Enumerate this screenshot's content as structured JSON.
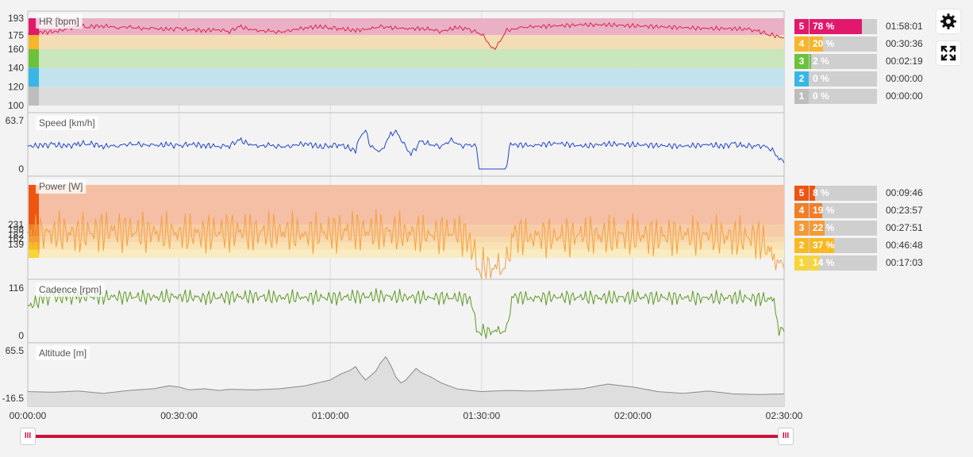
{
  "chart_data": [
    {
      "type": "line",
      "ylabel": "HR [bpm]",
      "yticks": [
        193,
        175,
        160,
        140,
        120,
        100
      ],
      "ylim": [
        100,
        193
      ],
      "zones": [
        {
          "zone": "5",
          "from": 175,
          "to": 193,
          "color": "#e2186c",
          "band": "#eab0c6",
          "pct": "78 %",
          "time": "01:58:01",
          "fraction": 0.78
        },
        {
          "zone": "4",
          "from": 160,
          "to": 175,
          "color": "#f7b52c",
          "band": "#f3ddb4",
          "pct": "20 %",
          "time": "00:30:36",
          "fraction": 0.2
        },
        {
          "zone": "3",
          "from": 140,
          "to": 160,
          "color": "#6cc23a",
          "band": "#c9e6bc",
          "pct": "2 %",
          "time": "00:02:19",
          "fraction": 0.02
        },
        {
          "zone": "2",
          "from": 120,
          "to": 140,
          "color": "#39b6e6",
          "band": "#c2e2ee",
          "pct": "0 %",
          "time": "00:00:00",
          "fraction": 0.0
        },
        {
          "zone": "1",
          "from": 100,
          "to": 120,
          "color": "#bdbdbd",
          "band": "#dcdcdc",
          "pct": "0 %",
          "time": "00:00:00",
          "fraction": 0.0
        }
      ],
      "series": [
        {
          "color": "#d6274d",
          "x": [
            0,
            3,
            6,
            8,
            10,
            12,
            15,
            18,
            20,
            22,
            25,
            28,
            30,
            32,
            35,
            38,
            40,
            42,
            45,
            48,
            50,
            52,
            55,
            58,
            60,
            62,
            65,
            68,
            70,
            72,
            75,
            78,
            80,
            82,
            85,
            87,
            88,
            89,
            90,
            91,
            92,
            93,
            95,
            98,
            100,
            105,
            110,
            115,
            120,
            125,
            130,
            135,
            140,
            143,
            145,
            147,
            150
          ],
          "values": [
            176,
            178,
            179,
            182,
            185,
            184,
            185,
            183,
            184,
            182,
            182,
            181,
            182,
            181,
            180,
            181,
            179,
            184,
            180,
            179,
            178,
            180,
            183,
            184,
            183,
            182,
            180,
            182,
            184,
            183,
            182,
            182,
            181,
            179,
            183,
            182,
            180,
            178,
            176,
            170,
            160,
            163,
            180,
            183,
            184,
            185,
            186,
            186,
            185,
            184,
            183,
            182,
            182,
            181,
            179,
            176,
            172
          ]
        }
      ],
      "xlim_minutes": [
        0,
        150
      ],
      "xticks": [
        "00:00:00",
        "00:30:00",
        "01:00:00",
        "01:30:00",
        "02:00:00",
        "02:30:00"
      ]
    },
    {
      "type": "line",
      "ylabel": "Speed [km/h]",
      "yticks": [
        63.7,
        0.0
      ],
      "ylim": [
        0,
        63.7
      ],
      "series": [
        {
          "color": "#1f46c7",
          "x": [
            0,
            3,
            5,
            8,
            10,
            12,
            15,
            18,
            20,
            22,
            25,
            28,
            30,
            32,
            35,
            38,
            40,
            42,
            45,
            48,
            50,
            52,
            55,
            58,
            60,
            62,
            65,
            66,
            67,
            68,
            70,
            72,
            73,
            75,
            76,
            78,
            80,
            82,
            84,
            86,
            88,
            89,
            89.5,
            90,
            93,
            95,
            95.5,
            96,
            100,
            105,
            110,
            115,
            120,
            125,
            130,
            135,
            138,
            140,
            142,
            144,
            146,
            147,
            148,
            149,
            150
          ],
          "values": [
            30,
            31,
            32,
            30,
            33,
            34,
            30,
            31,
            33,
            32,
            31,
            32,
            30,
            33,
            31,
            30,
            31,
            38,
            30,
            31,
            29,
            30,
            34,
            29,
            31,
            32,
            24,
            44,
            50,
            30,
            22,
            46,
            50,
            28,
            20,
            36,
            32,
            30,
            38,
            30,
            33,
            28,
            0,
            0,
            0,
            0,
            30,
            32,
            31,
            34,
            30,
            33,
            32,
            31,
            30,
            32,
            30,
            33,
            30,
            31,
            30,
            28,
            22,
            14,
            8
          ]
        }
      ]
    },
    {
      "type": "line",
      "ylabel": "Power [W]",
      "yticks": [
        231,
        198,
        182,
        162,
        139
      ],
      "ylim": [
        100,
        340
      ],
      "zones": [
        {
          "zone": "5",
          "color": "#ee5513",
          "band": "#f4bfa4",
          "pct": "8 %",
          "time": "00:09:46",
          "fraction": 0.08
        },
        {
          "zone": "4",
          "color": "#f07f2a",
          "band": "#f6cda7",
          "pct": "19 %",
          "time": "00:23:57",
          "fraction": 0.19
        },
        {
          "zone": "3",
          "color": "#f29a38",
          "band": "#f7d7ad",
          "pct": "22 %",
          "time": "00:27:51",
          "fraction": 0.22
        },
        {
          "zone": "2",
          "color": "#f8b925",
          "band": "#f9e2b3",
          "pct": "37 %",
          "time": "00:46:48",
          "fraction": 0.37
        },
        {
          "zone": "1",
          "color": "#f6d63a",
          "band": "#f9ecc2",
          "pct": "14 %",
          "time": "00:17:03",
          "fraction": 0.14
        }
      ],
      "series": [
        {
          "color": "#f5a13e",
          "x": [
            0,
            5,
            10,
            15,
            20,
            25,
            30,
            35,
            40,
            45,
            50,
            55,
            60,
            65,
            70,
            75,
            80,
            85,
            88,
            89,
            90,
            93,
            95,
            96,
            100,
            105,
            110,
            115,
            120,
            125,
            130,
            135,
            140,
            145,
            148,
            150
          ],
          "values": [
            200,
            210,
            205,
            215,
            212,
            208,
            210,
            205,
            215,
            209,
            212,
            206,
            210,
            214,
            212,
            208,
            205,
            210,
            190,
            110,
            110,
            110,
            110,
            205,
            200,
            198,
            202,
            200,
            203,
            199,
            201,
            200,
            198,
            195,
            140,
            110
          ]
        }
      ]
    },
    {
      "type": "line",
      "ylabel": "Cadence [rpm]",
      "yticks": [
        116,
        0
      ],
      "ylim": [
        0,
        116
      ],
      "series": [
        {
          "color": "#5e9a23",
          "x": [
            0,
            3,
            5,
            8,
            10,
            15,
            20,
            25,
            30,
            35,
            40,
            45,
            50,
            55,
            60,
            65,
            70,
            75,
            80,
            85,
            88,
            89,
            90,
            93,
            95,
            96,
            100,
            105,
            110,
            115,
            120,
            125,
            130,
            135,
            140,
            145,
            148,
            149,
            150
          ],
          "values": [
            70,
            90,
            95,
            93,
            96,
            94,
            95,
            93,
            96,
            92,
            94,
            95,
            93,
            94,
            92,
            95,
            96,
            94,
            93,
            92,
            90,
            10,
            10,
            10,
            10,
            95,
            92,
            94,
            93,
            92,
            94,
            93,
            92,
            91,
            93,
            90,
            88,
            10,
            10
          ]
        }
      ]
    },
    {
      "type": "area",
      "ylabel": "Altitude [m]",
      "yticks": [
        65.5,
        -16.5
      ],
      "ylim": [
        -16.5,
        65.5
      ],
      "series": [
        {
          "color": "#8a8a8a",
          "x": [
            0,
            5,
            10,
            15,
            20,
            25,
            28,
            30,
            32,
            35,
            38,
            40,
            45,
            50,
            55,
            60,
            62,
            64,
            65,
            66,
            67,
            69,
            70,
            71,
            72,
            73,
            74,
            75,
            76,
            77,
            78,
            80,
            82,
            85,
            90,
            95,
            100,
            105,
            110,
            115,
            120,
            125,
            130,
            135,
            140,
            145,
            150
          ],
          "values": [
            -5,
            -6,
            -4,
            -8,
            -3,
            0,
            5,
            3,
            -2,
            0,
            -3,
            -1,
            -2,
            0,
            5,
            15,
            25,
            32,
            38,
            25,
            15,
            30,
            45,
            55,
            40,
            20,
            10,
            15,
            25,
            35,
            28,
            20,
            10,
            0,
            -5,
            -3,
            -4,
            -2,
            0,
            8,
            3,
            -5,
            -8,
            -4,
            -9,
            -10,
            -9
          ]
        }
      ]
    }
  ],
  "zone_panel": {
    "hr": [
      {
        "num": "5",
        "pct": "78 %",
        "time": "01:58:01"
      },
      {
        "num": "4",
        "pct": "20 %",
        "time": "00:30:36"
      },
      {
        "num": "3",
        "pct": "2 %",
        "time": "00:02:19"
      },
      {
        "num": "2",
        "pct": "0 %",
        "time": "00:00:00"
      },
      {
        "num": "1",
        "pct": "0 %",
        "time": "00:00:00"
      }
    ],
    "power": [
      {
        "num": "5",
        "pct": "8 %",
        "time": "00:09:46"
      },
      {
        "num": "4",
        "pct": "19 %",
        "time": "00:23:57"
      },
      {
        "num": "3",
        "pct": "22 %",
        "time": "00:27:51"
      },
      {
        "num": "2",
        "pct": "37 %",
        "time": "00:46:48"
      },
      {
        "num": "1",
        "pct": "14 %",
        "time": "00:17:03"
      }
    ]
  },
  "toolbar": {
    "settings_icon": "gear-icon",
    "fullscreen_icon": "expand-icon"
  },
  "range_slider": {
    "start_fraction": 0.0,
    "end_fraction": 1.0,
    "handle_glyph": "III",
    "color": "#d0103a"
  }
}
